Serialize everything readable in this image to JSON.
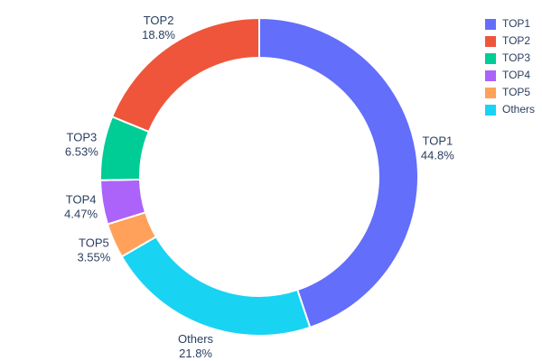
{
  "chart_data": {
    "type": "pie",
    "subtype": "donut",
    "title": "",
    "labels": [
      "TOP1",
      "TOP2",
      "TOP3",
      "TOP4",
      "TOP5",
      "Others"
    ],
    "values": [
      44.8,
      18.8,
      6.53,
      4.47,
      3.55,
      21.8
    ],
    "percent_labels": [
      "44.8%",
      "18.8%",
      "6.53%",
      "4.47%",
      "3.55%",
      "21.8%"
    ],
    "colors": [
      "#636EFA",
      "#EF553B",
      "#00CC96",
      "#AB63FA",
      "#FFA15A",
      "#19D3F3"
    ],
    "hole": 0.75,
    "start_angle_deg": 0,
    "first_slice_clockwise_rest_counterclockwise": true,
    "legend_position": "top-right",
    "label_position": "outside",
    "text_color": "#2a3f5f",
    "background_color": "#ffffff",
    "slice_border_color": "#ffffff"
  }
}
